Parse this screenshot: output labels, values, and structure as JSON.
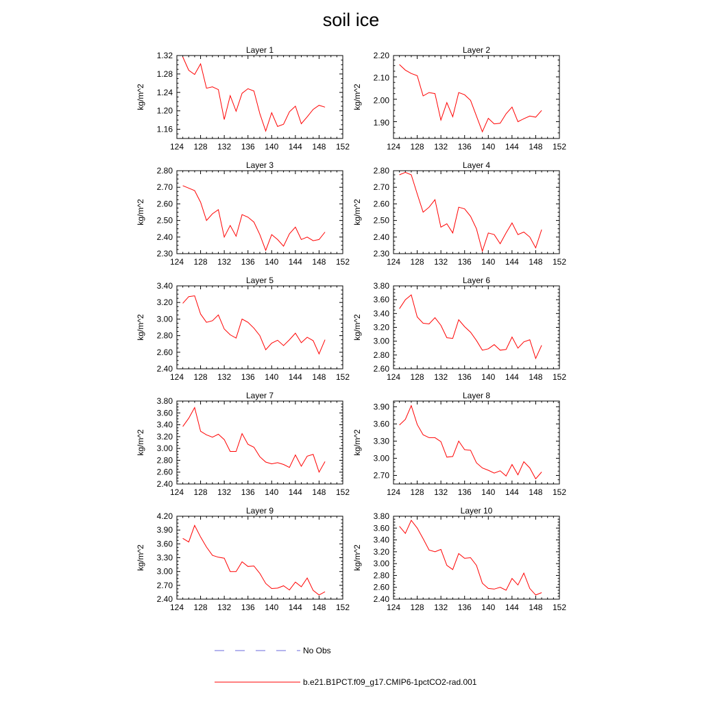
{
  "title": "soil ice",
  "chart_data": {
    "type": "line",
    "ylabel": "kg/m^2",
    "x": [
      125,
      126,
      127,
      128,
      129,
      130,
      131,
      132,
      133,
      134,
      135,
      136,
      137,
      138,
      139,
      140,
      141,
      142,
      143,
      144,
      145,
      146,
      147,
      148,
      149
    ],
    "xlim": [
      124,
      152
    ],
    "xticks": [
      "124",
      "128",
      "132",
      "136",
      "140",
      "144",
      "148",
      "152"
    ],
    "line_color": "#ff0000",
    "panels": [
      {
        "title": "Layer 1",
        "ylim": [
          1.14,
          1.32
        ],
        "yticks": [
          "1.16",
          "1.20",
          "1.24",
          "1.28",
          "1.32"
        ],
        "values": [
          1.317,
          1.288,
          1.279,
          1.302,
          1.249,
          1.252,
          1.246,
          1.181,
          1.233,
          1.199,
          1.238,
          1.248,
          1.243,
          1.194,
          1.156,
          1.196,
          1.166,
          1.171,
          1.198,
          1.21,
          1.172,
          1.187,
          1.203,
          1.212,
          1.208
        ]
      },
      {
        "title": "Layer 2",
        "ylim": [
          1.83,
          2.2
        ],
        "yticks": [
          "1.90",
          "2.00",
          "2.10",
          "2.20"
        ],
        "values": [
          2.16,
          2.135,
          2.12,
          2.11,
          2.02,
          2.035,
          2.03,
          1.912,
          1.99,
          1.927,
          2.035,
          2.025,
          2.0,
          1.93,
          1.86,
          1.92,
          1.895,
          1.898,
          1.94,
          1.97,
          1.905,
          1.918,
          1.93,
          1.925,
          1.955
        ]
      },
      {
        "title": "Layer 3",
        "ylim": [
          2.3,
          2.8
        ],
        "yticks": [
          "2.30",
          "2.40",
          "2.50",
          "2.60",
          "2.70",
          "2.80"
        ],
        "values": [
          2.71,
          2.695,
          2.68,
          2.61,
          2.5,
          2.54,
          2.565,
          2.4,
          2.47,
          2.405,
          2.535,
          2.52,
          2.49,
          2.415,
          2.32,
          2.415,
          2.385,
          2.345,
          2.42,
          2.46,
          2.385,
          2.4,
          2.378,
          2.385,
          2.43
        ]
      },
      {
        "title": "Layer 4",
        "ylim": [
          2.3,
          2.8
        ],
        "yticks": [
          "2.30",
          "2.40",
          "2.50",
          "2.60",
          "2.70",
          "2.80"
        ],
        "values": [
          2.775,
          2.79,
          2.775,
          2.66,
          2.55,
          2.58,
          2.625,
          2.46,
          2.48,
          2.425,
          2.58,
          2.57,
          2.525,
          2.45,
          2.315,
          2.425,
          2.415,
          2.36,
          2.425,
          2.485,
          2.415,
          2.43,
          2.4,
          2.335,
          2.445
        ]
      },
      {
        "title": "Layer 5",
        "ylim": [
          2.4,
          3.4
        ],
        "yticks": [
          "2.40",
          "2.60",
          "2.80",
          "3.00",
          "3.20",
          "3.40"
        ],
        "values": [
          3.19,
          3.27,
          3.28,
          3.06,
          2.96,
          2.98,
          3.05,
          2.88,
          2.81,
          2.77,
          3.0,
          2.96,
          2.89,
          2.8,
          2.63,
          2.71,
          2.745,
          2.68,
          2.75,
          2.83,
          2.715,
          2.78,
          2.74,
          2.58,
          2.75
        ]
      },
      {
        "title": "Layer 6",
        "ylim": [
          2.6,
          3.8
        ],
        "yticks": [
          "2.60",
          "2.80",
          "3.00",
          "3.20",
          "3.40",
          "3.60",
          "3.80"
        ],
        "values": [
          3.47,
          3.6,
          3.67,
          3.35,
          3.26,
          3.25,
          3.34,
          3.23,
          3.05,
          3.04,
          3.31,
          3.21,
          3.13,
          3.01,
          2.87,
          2.89,
          2.95,
          2.87,
          2.88,
          3.06,
          2.9,
          2.99,
          3.02,
          2.75,
          2.94
        ]
      },
      {
        "title": "Layer 7",
        "ylim": [
          2.4,
          3.8
        ],
        "yticks": [
          "2.40",
          "2.60",
          "2.80",
          "3.00",
          "3.20",
          "3.40",
          "3.60",
          "3.80"
        ],
        "values": [
          3.37,
          3.51,
          3.69,
          3.29,
          3.23,
          3.19,
          3.24,
          3.15,
          2.95,
          2.95,
          3.25,
          3.07,
          3.02,
          2.86,
          2.77,
          2.74,
          2.76,
          2.73,
          2.68,
          2.89,
          2.7,
          2.87,
          2.9,
          2.6,
          2.78
        ]
      },
      {
        "title": "Layer 8",
        "ylim": [
          2.55,
          4.0
        ],
        "yticks": [
          "2.70",
          "3.00",
          "3.30",
          "3.60",
          "3.90"
        ],
        "values": [
          3.58,
          3.68,
          3.92,
          3.59,
          3.41,
          3.36,
          3.36,
          3.29,
          3.02,
          3.03,
          3.3,
          3.15,
          3.14,
          2.92,
          2.83,
          2.79,
          2.74,
          2.78,
          2.69,
          2.89,
          2.71,
          2.94,
          2.83,
          2.64,
          2.76
        ]
      },
      {
        "title": "Layer 9",
        "ylim": [
          2.4,
          4.2
        ],
        "yticks": [
          "2.40",
          "2.70",
          "3.00",
          "3.30",
          "3.60",
          "3.90",
          "4.20"
        ],
        "values": [
          3.72,
          3.64,
          4.0,
          3.75,
          3.53,
          3.35,
          3.31,
          3.29,
          3.0,
          3.0,
          3.21,
          3.11,
          3.12,
          2.96,
          2.74,
          2.63,
          2.64,
          2.69,
          2.6,
          2.77,
          2.67,
          2.86,
          2.59,
          2.49,
          2.56
        ]
      },
      {
        "title": "Layer 10",
        "ylim": [
          2.4,
          3.8
        ],
        "yticks": [
          "2.40",
          "2.60",
          "2.80",
          "3.00",
          "3.20",
          "3.40",
          "3.60",
          "3.80"
        ],
        "values": [
          3.63,
          3.51,
          3.73,
          3.6,
          3.42,
          3.23,
          3.2,
          3.24,
          2.97,
          2.9,
          3.17,
          3.09,
          3.1,
          2.97,
          2.67,
          2.58,
          2.57,
          2.6,
          2.55,
          2.75,
          2.64,
          2.84,
          2.58,
          2.47,
          2.51
        ]
      }
    ],
    "legend": [
      {
        "label": "No Obs",
        "color": "#6a6adc",
        "style": "dashed"
      },
      {
        "label": "b.e21.B1PCT.f09_g17.CMIP6-1pctCO2-rad.001",
        "color": "#ff0000",
        "style": "solid"
      }
    ]
  }
}
